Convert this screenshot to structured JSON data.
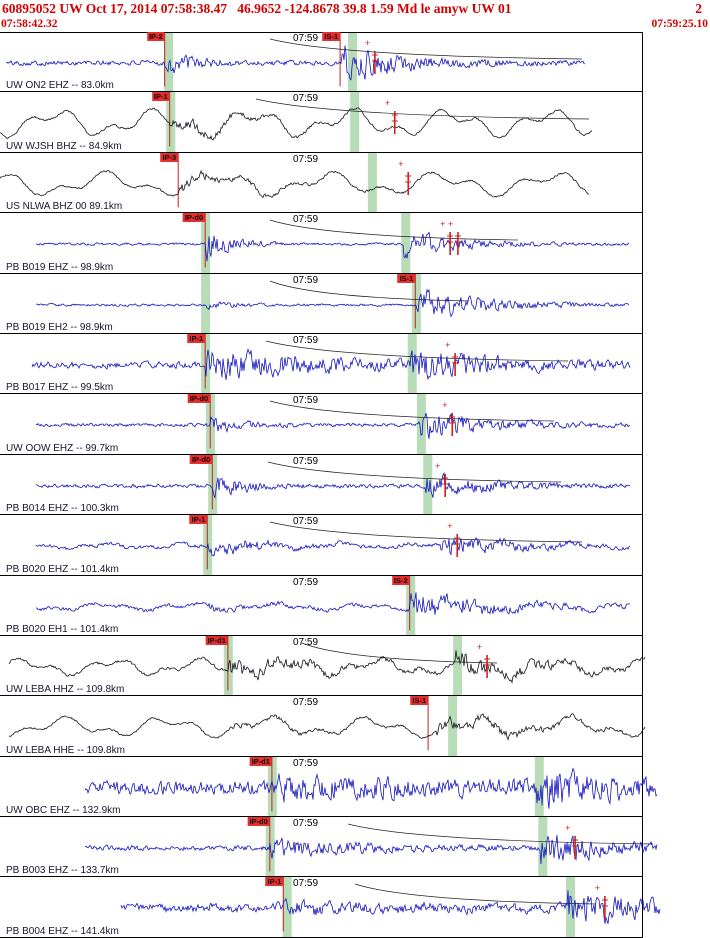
{
  "header": {
    "event_line": "60895052 UW Oct 17, 2014 07:58:38.47   46.9652 -124.8678 39.8 1.59 Md le amyw UW 01",
    "page_number": "2",
    "window_start": "07:58:42.32",
    "window_end": "07:59:25.10"
  },
  "colors": {
    "header_red": "#d40000",
    "trace_blue": "#1515c0",
    "trace_black": "#15151f",
    "pick_red": "#cc1f1f",
    "band_green": "#b7dcb7"
  },
  "traces": [
    {
      "station_label": "UW ON2 EHZ -- 83.0km",
      "time_tick": "07:59",
      "color": "blue",
      "picks": [
        {
          "label": "IP-2",
          "x": 0.232
        },
        {
          "label": "IS-1",
          "x": 0.479
        }
      ],
      "bands": [
        0.234,
        0.493
      ],
      "amp_marks": [
        0.528
      ],
      "curve": {
        "x1": 0.38,
        "x2": 0.82
      },
      "wave": {
        "seed": 101,
        "noise": 2.4,
        "lf": 0,
        "lfcyc": 0,
        "xstart": 0.008,
        "xend": 0.824,
        "events": [
          {
            "x": 0.232,
            "amp": 12,
            "dec": 26
          },
          {
            "x": 0.479,
            "amp": 19,
            "dec": 13
          }
        ]
      }
    },
    {
      "station_label": "UW WJSH BHZ -- 84.9km",
      "time_tick": "07:59",
      "color": "black",
      "picks": [
        {
          "label": "IP-1",
          "x": 0.239
        }
      ],
      "bands": [
        0.237,
        0.496
      ],
      "amp_marks": [
        0.556
      ],
      "curve": {
        "x1": 0.36,
        "x2": 0.83
      },
      "wave": {
        "seed": 102,
        "noise": 1.1,
        "lf": 15,
        "lfcyc": 7.2,
        "xstart": 0.0,
        "xend": 0.834,
        "events": [
          {
            "x": 0.239,
            "amp": 6,
            "dec": 14
          }
        ]
      }
    },
    {
      "station_label": "US NLWA BHZ 00 89.1km",
      "time_tick": "07:59",
      "color": "black",
      "picks": [
        {
          "label": "IP-3",
          "x": 0.251
        }
      ],
      "bands": [
        0.521
      ],
      "amp_marks": [
        0.575
      ],
      "wave": {
        "seed": 103,
        "noise": 1.0,
        "lf": 13,
        "lfcyc": 6.4,
        "xstart": 0.0,
        "xend": 0.83,
        "events": [
          {
            "x": 0.251,
            "amp": 5,
            "dec": 12
          }
        ]
      }
    },
    {
      "station_label": "PB B019 EHZ -- 98.9km",
      "time_tick": "07:59",
      "color": "blue",
      "picks": [
        {
          "label": "IP-d0",
          "x": 0.289
        }
      ],
      "bands": [
        0.286,
        0.568
      ],
      "amp_marks": [
        0.634,
        0.645
      ],
      "curve": {
        "x1": 0.38,
        "x2": 0.73
      },
      "wave": {
        "seed": 104,
        "noise": 1.2,
        "lf": 0,
        "lfcyc": 0,
        "xstart": 0.05,
        "xend": 0.886,
        "events": [
          {
            "x": 0.289,
            "amp": 18,
            "dec": 30
          },
          {
            "x": 0.568,
            "amp": 12,
            "dec": 13
          }
        ]
      }
    },
    {
      "station_label": "PB B019 EH2 -- 98.9km",
      "time_tick": "07:59",
      "color": "blue",
      "picks": [
        {
          "label": "IS-1",
          "x": 0.585
        }
      ],
      "bands": [
        0.286,
        0.583
      ],
      "amp_marks": [],
      "curve": {
        "x1": 0.38,
        "x2": 0.66
      },
      "wave": {
        "seed": 105,
        "noise": 1.2,
        "lf": 0,
        "lfcyc": 0,
        "xstart": 0.05,
        "xend": 0.886,
        "events": [
          {
            "x": 0.289,
            "amp": 3,
            "dec": 24
          },
          {
            "x": 0.585,
            "amp": 16,
            "dec": 11
          }
        ]
      }
    },
    {
      "station_label": "PB B017 EHZ -- 99.5km",
      "time_tick": "07:59",
      "color": "blue",
      "picks": [
        {
          "label": "IP-1",
          "x": 0.289
        }
      ],
      "bands": [
        0.286,
        0.577
      ],
      "amp_marks": [
        0.641
      ],
      "curve": {
        "x1": 0.375,
        "x2": 0.8
      },
      "wave": {
        "seed": 106,
        "noise": 3.2,
        "lf": 0,
        "lfcyc": 0,
        "xstart": 0.045,
        "xend": 0.888,
        "events": [
          {
            "x": 0.289,
            "amp": 14,
            "dec": 6
          },
          {
            "x": 0.577,
            "amp": 12,
            "dec": 9
          }
        ]
      }
    },
    {
      "station_label": "UW OOW EHZ -- 99.7km",
      "time_tick": "07:59",
      "color": "blue",
      "picks": [
        {
          "label": "IP-d0",
          "x": 0.296
        }
      ],
      "bands": [
        0.293,
        0.59
      ],
      "amp_marks": [
        0.637
      ],
      "curve": {
        "x1": 0.38,
        "x2": 0.78
      },
      "wave": {
        "seed": 107,
        "noise": 1.6,
        "lf": 0,
        "lfcyc": 0,
        "xstart": 0.05,
        "xend": 0.888,
        "events": [
          {
            "x": 0.296,
            "amp": 7,
            "dec": 20
          },
          {
            "x": 0.59,
            "amp": 15,
            "dec": 11
          }
        ]
      }
    },
    {
      "station_label": "PB B014 EHZ -- 100.3km",
      "time_tick": "07:59",
      "color": "blue",
      "picks": [
        {
          "label": "IP-d0",
          "x": 0.299
        }
      ],
      "bands": [
        0.296,
        0.599
      ],
      "amp_marks": [
        0.627
      ],
      "curve": {
        "x1": 0.378,
        "x2": 0.79
      },
      "wave": {
        "seed": 108,
        "noise": 1.8,
        "lf": 0,
        "lfcyc": 0,
        "xstart": 0.05,
        "xend": 0.888,
        "events": [
          {
            "x": 0.299,
            "amp": 14,
            "dec": 26
          },
          {
            "x": 0.599,
            "amp": 11,
            "dec": 12
          }
        ]
      }
    },
    {
      "station_label": "PB B020 EHZ -- 101.4km",
      "time_tick": "07:59",
      "color": "blue",
      "picks": [
        {
          "label": "IP-1",
          "x": 0.292
        }
      ],
      "bands": [
        0.289
      ],
      "amp_marks": [
        0.644
      ],
      "curve": {
        "x1": 0.38,
        "x2": 0.82
      },
      "wave": {
        "seed": 109,
        "noise": 1.8,
        "lf": 3,
        "lfcyc": 9,
        "xstart": 0.05,
        "xend": 0.888,
        "events": [
          {
            "x": 0.292,
            "amp": 12,
            "dec": 20
          },
          {
            "x": 0.62,
            "amp": 10,
            "dec": 12
          }
        ]
      }
    },
    {
      "station_label": "PB B020 EH1 -- 101.4km",
      "time_tick": "07:59",
      "color": "blue",
      "picks": [
        {
          "label": "IS-2",
          "x": 0.577
        }
      ],
      "bands": [
        0.575
      ],
      "amp_marks": [],
      "wave": {
        "seed": 110,
        "noise": 1.8,
        "lf": 4,
        "lfcyc": 8,
        "xstart": 0.05,
        "xend": 0.888,
        "events": [
          {
            "x": 0.292,
            "amp": 2.5,
            "dec": 16
          },
          {
            "x": 0.577,
            "amp": 15,
            "dec": 11
          }
        ]
      }
    },
    {
      "station_label": "UW LEBA HHZ -- 109.8km",
      "time_tick": "07:59",
      "color": "black",
      "picks": [
        {
          "label": "IP-d1",
          "x": 0.321
        }
      ],
      "bands": [
        0.318,
        0.641
      ],
      "amp_marks": [
        0.686
      ],
      "curve": {
        "x1": 0.425,
        "x2": 0.7
      },
      "wave": {
        "seed": 111,
        "noise": 1.4,
        "lf": 9,
        "lfcyc": 8,
        "xstart": 0.012,
        "xend": 0.908,
        "events": [
          {
            "x": 0.321,
            "amp": 7,
            "dec": 8
          },
          {
            "x": 0.641,
            "amp": 9,
            "dec": 9
          }
        ]
      }
    },
    {
      "station_label": "UW LEBA HHE -- 109.8km",
      "time_tick": "07:59",
      "color": "black",
      "picks": [
        {
          "label": "IS-1",
          "x": 0.603
        }
      ],
      "bands": [
        0.634
      ],
      "amp_marks": [],
      "wave": {
        "seed": 112,
        "noise": 1.0,
        "lf": 11,
        "lfcyc": 7,
        "xstart": 0.012,
        "xend": 0.908,
        "events": [
          {
            "x": 0.321,
            "amp": 2,
            "dec": 8
          },
          {
            "x": 0.615,
            "amp": 6,
            "dec": 7
          }
        ]
      }
    },
    {
      "station_label": "UW OBC EHZ -- 132.9km",
      "time_tick": "07:59",
      "color": "blue",
      "picks": [
        {
          "label": "IP-d1",
          "x": 0.383
        }
      ],
      "bands": [
        0.38,
        0.756
      ],
      "amp_marks": [],
      "wave": {
        "seed": 113,
        "noise": 6.5,
        "lf": 0,
        "lfcyc": 0,
        "xstart": 0.12,
        "xend": 0.925,
        "events": [
          {
            "x": 0.383,
            "amp": 8,
            "dec": 4
          },
          {
            "x": 0.756,
            "amp": 15,
            "dec": 10
          }
        ]
      }
    },
    {
      "station_label": "PB B003 EHZ -- 133.7km",
      "time_tick": "07:59",
      "color": "blue",
      "picks": [
        {
          "label": "IP-d0",
          "x": 0.38
        }
      ],
      "bands": [
        0.377,
        0.761
      ],
      "amp_marks": [
        0.81
      ],
      "curve": {
        "x1": 0.49,
        "x2": 0.92
      },
      "wave": {
        "seed": 114,
        "noise": 2.4,
        "lf": 0,
        "lfcyc": 0,
        "xstart": 0.12,
        "xend": 0.925,
        "events": [
          {
            "x": 0.38,
            "amp": 9,
            "dec": 8
          },
          {
            "x": 0.761,
            "amp": 15,
            "dec": 11
          }
        ]
      }
    },
    {
      "station_label": "PB B004 EHZ -- 141.4km",
      "time_tick": "07:59",
      "color": "blue",
      "picks": [
        {
          "label": "IP-1",
          "x": 0.399
        }
      ],
      "bands": [
        0.401,
        0.8
      ],
      "amp_marks": [
        0.852
      ],
      "curve": {
        "x1": 0.5,
        "x2": 0.84
      },
      "wave": {
        "seed": 115,
        "noise": 3.8,
        "lf": 2.5,
        "lfcyc": 10,
        "xstart": 0.17,
        "xend": 0.93,
        "events": [
          {
            "x": 0.399,
            "amp": 5,
            "dec": 8
          },
          {
            "x": 0.8,
            "amp": 16,
            "dec": 9
          }
        ]
      }
    }
  ]
}
